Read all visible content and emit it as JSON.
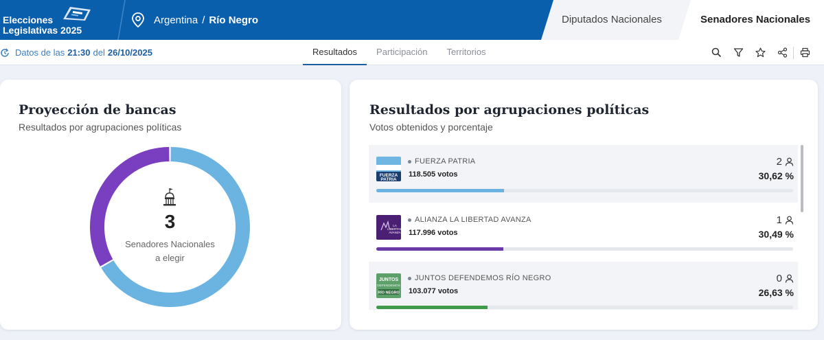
{
  "header": {
    "logo_line1": "Elecciones",
    "logo_line2": "Legislativas 2025",
    "location_country": "Argentina",
    "location_sep": "/",
    "location_province": "Río Negro",
    "tabs": [
      {
        "label": "Diputados Nacionales",
        "active": false
      },
      {
        "label": "Senadores Nacionales",
        "active": true
      }
    ]
  },
  "subbar": {
    "datos_prefix": "Datos de las",
    "datos_time": "21:30",
    "datos_mid": "del",
    "datos_date": "26/10/2025",
    "nav": [
      {
        "label": "Resultados",
        "active": true
      },
      {
        "label": "Participación",
        "active": false
      },
      {
        "label": "Territorios",
        "active": false
      }
    ],
    "tools": [
      "search-icon",
      "filter-icon",
      "star-icon",
      "share-icon",
      "print-icon"
    ]
  },
  "left_card": {
    "title": "Proyección de bancas",
    "subtitle": "Resultados por agrupaciones políticas",
    "total_seats": "3",
    "center_line1": "Senadores Nacionales",
    "center_line2": "a elegir"
  },
  "chart_data": {
    "type": "pie",
    "categories": [
      "FUERZA PATRIA",
      "ALIANZA LA LIBERTAD AVANZA",
      "JUNTOS DEFENDEMOS RÍO NEGRO"
    ],
    "values": [
      2,
      1,
      0
    ],
    "colors": [
      "#6bb3e1",
      "#7a3fc0",
      "#3f9a5a"
    ]
  },
  "right_card": {
    "title": "Resultados por agrupaciones políticas",
    "subtitle": "Votos obtenidos y porcentaje",
    "parties": [
      {
        "name": "FUERZA PATRIA",
        "votes": "118.505 votos",
        "seats": "2",
        "percent": "30,62 %",
        "pct_value": 30.62,
        "color": "#6bb3e1",
        "logo": "fuerza-patria-logo"
      },
      {
        "name": "ALIANZA LA LIBERTAD AVANZA",
        "votes": "117.996 votos",
        "seats": "1",
        "percent": "30,49 %",
        "pct_value": 30.49,
        "color": "#6a3aa8",
        "logo": "libertad-avanza-logo"
      },
      {
        "name": "JUNTOS DEFENDEMOS RÍO NEGRO",
        "votes": "103.077 votos",
        "seats": "0",
        "percent": "26,63 %",
        "pct_value": 26.63,
        "color": "#3f9a4c",
        "logo": "juntos-defendemos-logo"
      }
    ]
  }
}
